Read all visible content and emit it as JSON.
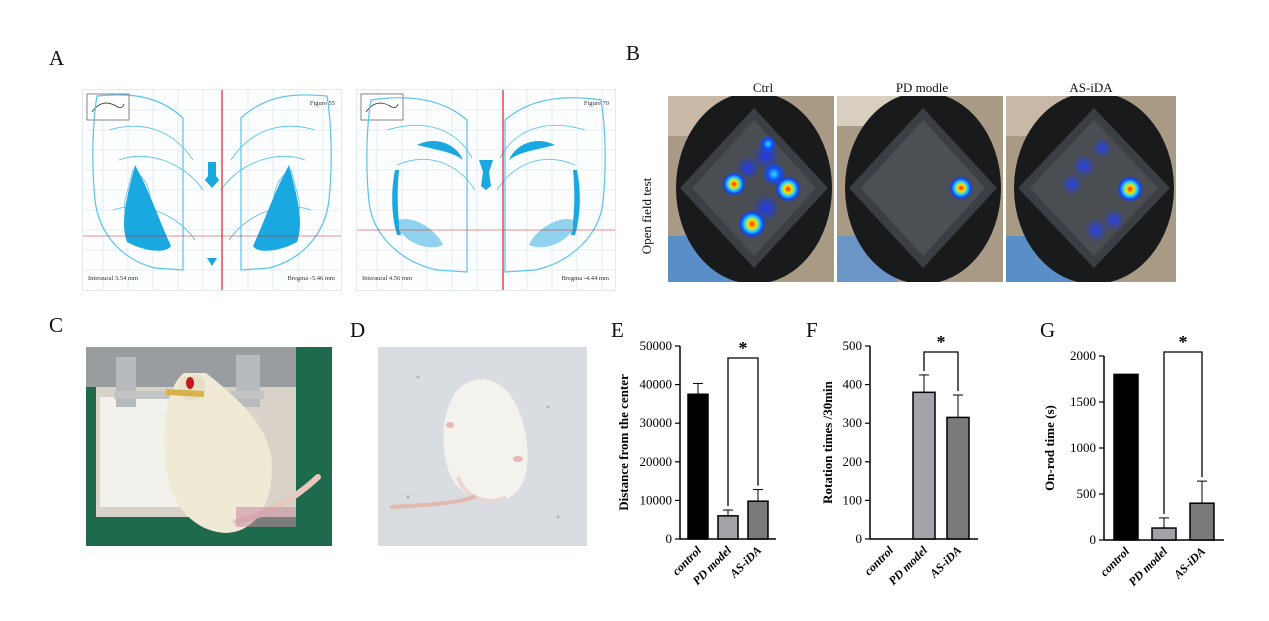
{
  "panel_labels": {
    "a": "A",
    "b": "B",
    "c": "C",
    "d": "D",
    "e": "E",
    "f": "F",
    "g": "G"
  },
  "atlas": {
    "left": {
      "figure": "Figure 55",
      "interaural": "Interaural 3.54 mm",
      "bregma": "Bregma -5.46 mm"
    },
    "right": {
      "figure": "Figure 70",
      "interaural": "Interaural 4.56 mm",
      "bregma": "Bregma -4.44 mm"
    }
  },
  "open_field": {
    "row_label": "Open field test",
    "columns": [
      "Ctrl",
      "PD modle",
      "AS-iDA"
    ]
  },
  "colors": {
    "atlas_line": "#5bc3ea",
    "atlas_fill": "#1aa8e0",
    "crosshair": "#e02020",
    "bar_black": "#000000",
    "bar_light_grey": "#a3a3aa",
    "bar_dark_grey": "#7a7a7a"
  },
  "chart_data": [
    {
      "type": "bar",
      "panel": "E",
      "categories": [
        "control",
        "PD model",
        "AS-iDA"
      ],
      "values": [
        37500,
        6000,
        9800
      ],
      "errors": [
        2800,
        1500,
        3000
      ],
      "bar_colors": [
        "#000000",
        "#a3a3aa",
        "#7a7a7a"
      ],
      "ylabel": "Distance from the center",
      "ylim": [
        0,
        50000
      ],
      "yticks": [
        0,
        10000,
        20000,
        30000,
        40000,
        50000
      ],
      "significance": {
        "from": 1,
        "to": 2,
        "label": "*"
      }
    },
    {
      "type": "bar",
      "panel": "F",
      "categories": [
        "control",
        "PD model",
        "AS-iDA"
      ],
      "values": [
        0,
        380,
        315
      ],
      "errors": [
        0,
        45,
        58
      ],
      "bar_colors": [
        "#000000",
        "#a3a3aa",
        "#7a7a7a"
      ],
      "ylabel": "Rotation times /30min",
      "ylim": [
        0,
        500
      ],
      "yticks": [
        0,
        100,
        200,
        300,
        400,
        500
      ],
      "significance": {
        "from": 1,
        "to": 2,
        "label": "*"
      }
    },
    {
      "type": "bar",
      "panel": "G",
      "categories": [
        "control",
        "PD model",
        "AS-iDA"
      ],
      "values": [
        1800,
        130,
        400
      ],
      "errors": [
        0,
        110,
        240
      ],
      "bar_colors": [
        "#000000",
        "#a3a3aa",
        "#7a7a7a"
      ],
      "ylabel": "On-rod time (s)",
      "ylim": [
        0,
        2000
      ],
      "yticks": [
        0,
        500,
        1000,
        1500,
        2000
      ],
      "significance": {
        "from": 1,
        "to": 2,
        "label": "*"
      }
    }
  ]
}
